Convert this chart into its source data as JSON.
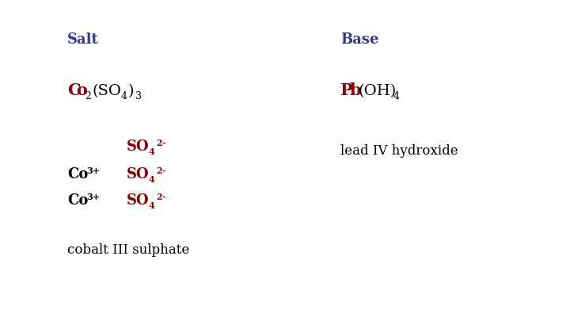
{
  "background_color": "#ffffff",
  "title_salt": "Salt",
  "title_base": "Base",
  "title_color": "#3333aa",
  "dark_red": "#8b0000",
  "black": "#000000",
  "fig_width": 7.2,
  "fig_height": 4.05,
  "dpi": 100
}
